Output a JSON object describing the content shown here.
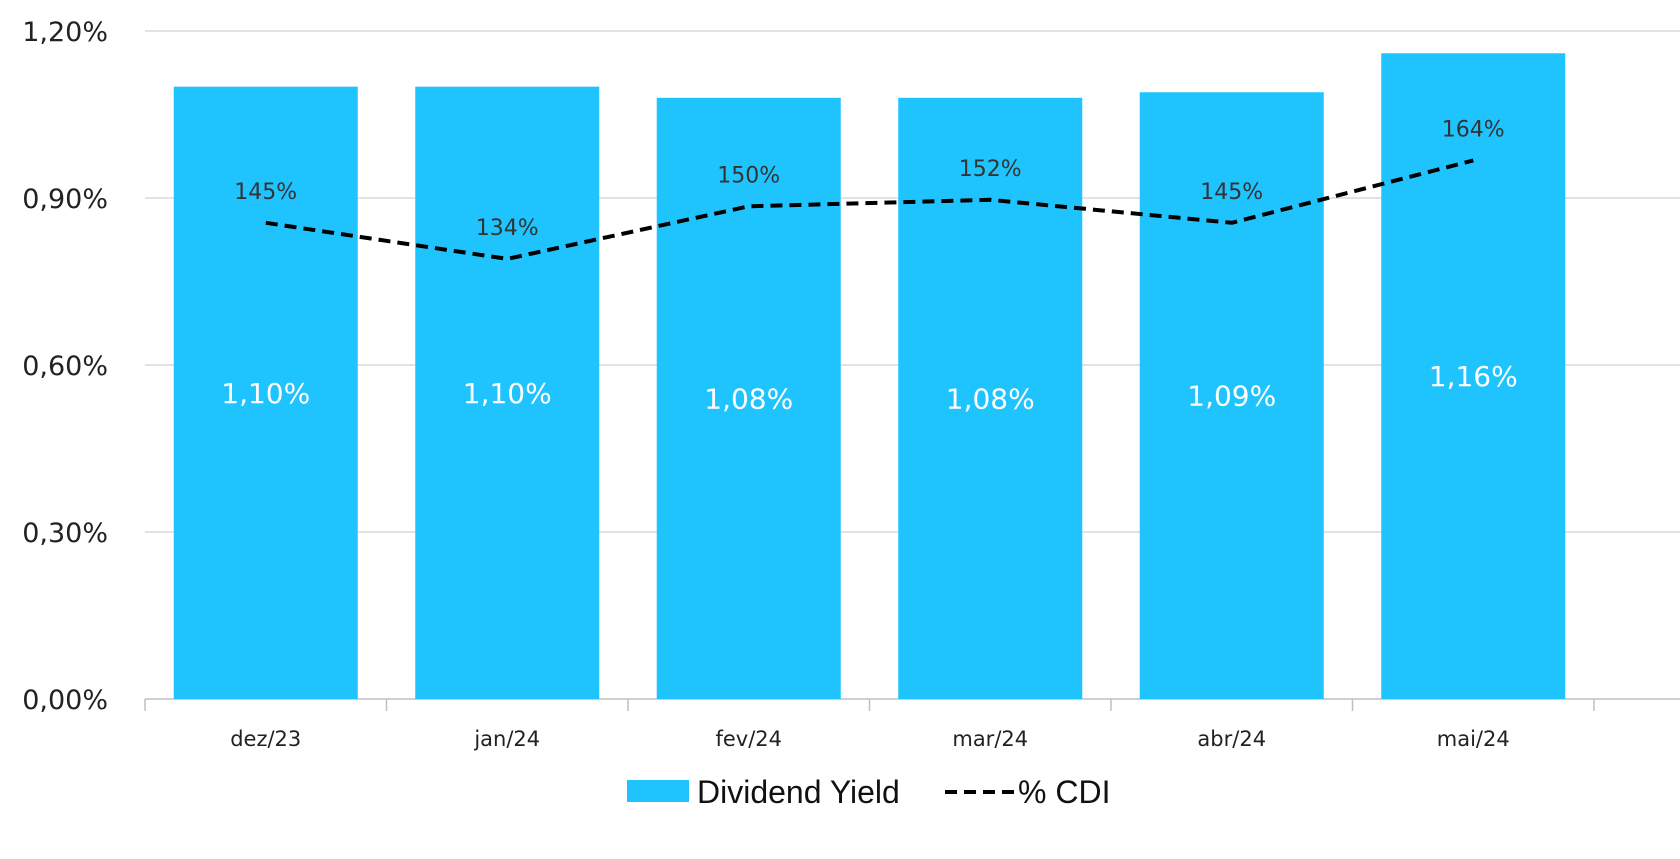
{
  "chart_data": {
    "type": "bar",
    "categories": [
      "dez/23",
      "jan/24",
      "fev/24",
      "mar/24",
      "abr/24",
      "mai/24"
    ],
    "series": [
      {
        "name": "Dividend Yield",
        "kind": "bar",
        "values": [
          1.1,
          1.1,
          1.08,
          1.08,
          1.09,
          1.16
        ],
        "labels": [
          "1,10%",
          "1,10%",
          "1,08%",
          "1,08%",
          "1,09%",
          "1,16%"
        ],
        "color": "#1FC4FF"
      },
      {
        "name": "% CDI",
        "kind": "line",
        "style": "dashed",
        "values": [
          145,
          134,
          150,
          152,
          145,
          164
        ],
        "labels": [
          "145%",
          "134%",
          "150%",
          "152%",
          "145%",
          "164%"
        ],
        "color": "#000000"
      }
    ],
    "yticks": [
      "0,00%",
      "0,30%",
      "0,60%",
      "0,90%",
      "1,20%"
    ],
    "ylim": [
      0,
      1.2
    ],
    "grid": true,
    "legend": "bottom"
  }
}
